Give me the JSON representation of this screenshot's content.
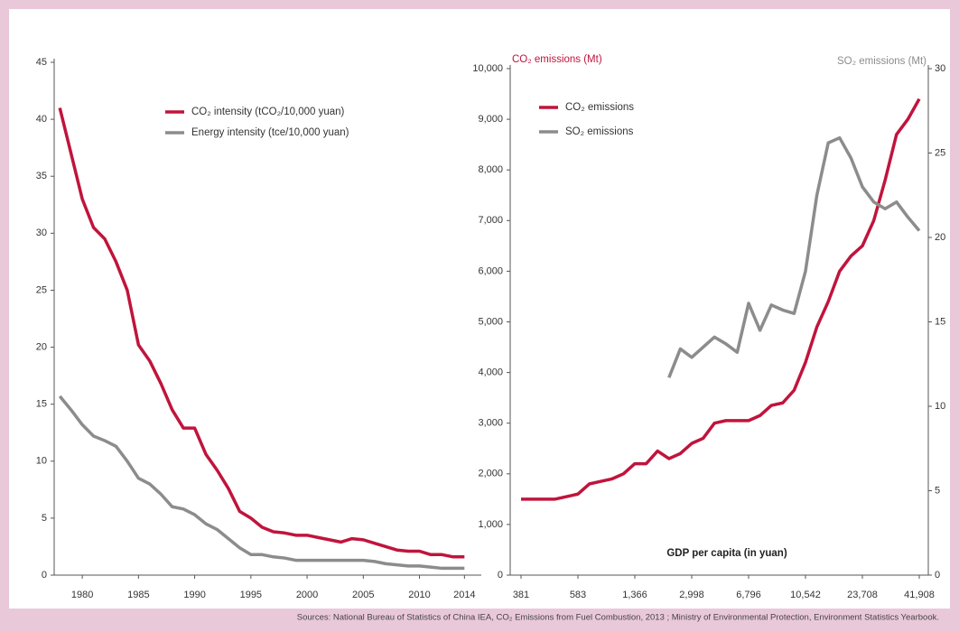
{
  "chart_data": [
    {
      "type": "line",
      "x": [
        1978,
        1979,
        1980,
        1981,
        1982,
        1983,
        1984,
        1985,
        1986,
        1987,
        1988,
        1989,
        1990,
        1991,
        1992,
        1993,
        1994,
        1995,
        1996,
        1997,
        1998,
        1999,
        2000,
        2001,
        2002,
        2003,
        2004,
        2005,
        2006,
        2007,
        2008,
        2009,
        2010,
        2011,
        2012,
        2013,
        2014
      ],
      "series": [
        {
          "name": "CO₂ intensity (tCO₂/10,000 yuan)",
          "color": "#c0143c",
          "values": [
            41,
            37,
            33,
            30.5,
            29.5,
            27.5,
            25,
            20.2,
            18.8,
            16.8,
            14.5,
            12.9,
            12.9,
            10.6,
            9.2,
            7.6,
            5.6,
            5,
            4.2,
            3.8,
            3.7,
            3.5,
            3.5,
            3.3,
            3.1,
            2.9,
            3.2,
            3.1,
            2.8,
            2.5,
            2.2,
            2.1,
            2.1,
            1.8,
            1.8,
            1.6,
            1.6
          ]
        },
        {
          "name": "Energy intensity (tce/10,000 yuan)",
          "color": "#8c8c8c",
          "values": [
            15.7,
            14.5,
            13.2,
            12.2,
            11.8,
            11.3,
            10,
            8.5,
            8,
            7.1,
            6,
            5.8,
            5.3,
            4.5,
            4,
            3.2,
            2.4,
            1.8,
            1.8,
            1.6,
            1.5,
            1.3,
            1.3,
            1.3,
            1.3,
            1.3,
            1.3,
            1.3,
            1.2,
            1,
            0.9,
            0.8,
            0.8,
            0.7,
            0.6,
            0.6,
            0.6
          ]
        }
      ],
      "xlim": [
        1977.5,
        2015.5
      ],
      "xticks": [
        1980,
        1985,
        1990,
        1995,
        2000,
        2005,
        2010,
        2014
      ],
      "ylim": [
        0,
        45
      ],
      "yticks": [
        0,
        5,
        10,
        15,
        20,
        25,
        30,
        35,
        40,
        45
      ]
    },
    {
      "type": "line",
      "ylabel": "CO₂ emissions (Mt)",
      "y2label": "SO₂ emissions (Mt)",
      "xlabel": "GDP per capita (in yuan)",
      "categories": [
        "381",
        null,
        null,
        null,
        null,
        "583",
        null,
        null,
        null,
        null,
        "1,366",
        null,
        null,
        null,
        null,
        "2,998",
        null,
        null,
        null,
        null,
        "6,796",
        null,
        null,
        null,
        null,
        "10,542",
        null,
        null,
        null,
        null,
        "23,708",
        null,
        null,
        null,
        null,
        "41,908"
      ],
      "series": [
        {
          "name": "CO₂ emissions",
          "color": "#c0143c",
          "axis": "y",
          "values": [
            1500,
            1500,
            1500,
            1500,
            1550,
            1600,
            1800,
            1850,
            1900,
            2000,
            2200,
            2200,
            2450,
            2300,
            2400,
            2600,
            2700,
            3000,
            3050,
            3050,
            3050,
            3150,
            3350,
            3400,
            3650,
            4200,
            4900,
            5400,
            6000,
            6300,
            6500,
            7000,
            7800,
            8700,
            9000,
            9400
          ]
        },
        {
          "name": "SO₂ emissions",
          "color": "#8c8c8c",
          "axis": "y2",
          "values": [
            null,
            null,
            null,
            null,
            null,
            null,
            null,
            null,
            null,
            null,
            null,
            null,
            null,
            11.7,
            13.4,
            12.9,
            13.5,
            14.1,
            13.7,
            13.2,
            16.1,
            14.5,
            16,
            15.7,
            15.5,
            18,
            22.5,
            25.6,
            25.9,
            24.7,
            23,
            22.1,
            21.7,
            22.1,
            21.2,
            20.4
          ]
        }
      ],
      "ylim": [
        0,
        10000
      ],
      "yticks": [
        0,
        {
          "value": 1000,
          "label": "1,000"
        },
        {
          "value": 2000,
          "label": "2,000"
        },
        {
          "value": 3000,
          "label": "3,000"
        },
        {
          "value": 4000,
          "label": "4,000"
        },
        {
          "value": 5000,
          "label": "5,000"
        },
        {
          "value": 6000,
          "label": "6,000"
        },
        {
          "value": 7000,
          "label": "7,000"
        },
        {
          "value": 8000,
          "label": "8,000"
        },
        {
          "value": 9000,
          "label": "9,000"
        },
        {
          "value": 10000,
          "label": "10,000"
        }
      ],
      "y2lim": [
        0,
        30
      ],
      "y2ticks": [
        0,
        5,
        10,
        15,
        20,
        25,
        30
      ]
    }
  ],
  "source": "Sources: National Bureau of Statistics of China IEA, CO₂ Emissions from Fuel Combustion, 2013 ; Ministry of Environmental Protection, Environment Statistics Yearbook."
}
